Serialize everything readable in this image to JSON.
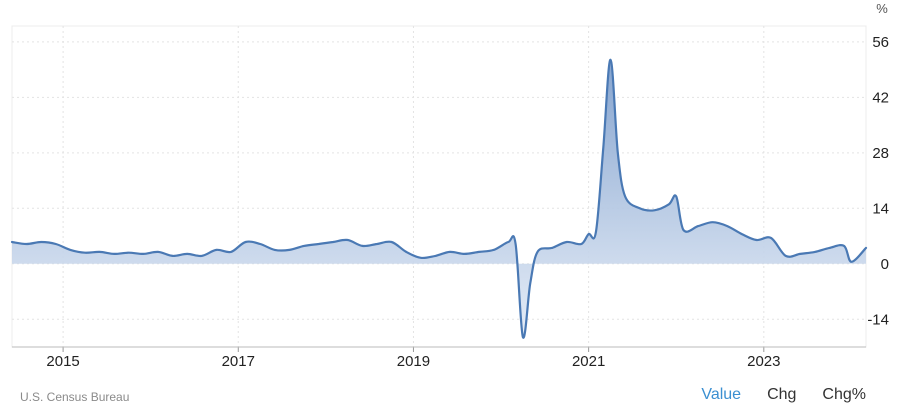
{
  "source": "U.S. Census Bureau",
  "tabs": [
    {
      "label": "Value",
      "active": true
    },
    {
      "label": "Chg",
      "active": false
    },
    {
      "label": "Chg%",
      "active": false
    }
  ],
  "colors": {
    "line": "#4a79b4",
    "fill_top": "#7f9fcc",
    "fill_bottom": "#e4ecf7",
    "grid": "#e3e3e3",
    "active_tab": "#3a8fd1"
  },
  "chart_data": {
    "type": "area",
    "title": "",
    "xlabel": "",
    "ylabel": "%",
    "unit": "%",
    "y_ticks": [
      56,
      42,
      28,
      14,
      0,
      -14
    ],
    "ylim": [
      -21,
      60
    ],
    "x_ticks": [
      "2015",
      "2017",
      "2019",
      "2021",
      "2023"
    ],
    "xlim": [
      "2014-06",
      "2024-03"
    ],
    "grid": true,
    "legend": "none",
    "y_axis_position": "right",
    "series": [
      {
        "x": [
          "2014-06",
          "2014-08",
          "2014-10",
          "2014-12",
          "2015-02",
          "2015-04",
          "2015-06",
          "2015-08",
          "2015-10",
          "2015-12",
          "2016-02",
          "2016-04",
          "2016-06",
          "2016-08",
          "2016-10",
          "2016-12",
          "2017-02",
          "2017-04",
          "2017-06",
          "2017-08",
          "2017-10",
          "2017-12",
          "2018-02",
          "2018-04",
          "2018-06",
          "2018-08",
          "2018-10",
          "2018-12",
          "2019-02",
          "2019-04",
          "2019-06",
          "2019-08",
          "2019-10",
          "2019-12",
          "2020-02",
          "2020-03",
          "2020-04",
          "2020-05",
          "2020-06",
          "2020-08",
          "2020-10",
          "2020-12",
          "2021-01",
          "2021-02",
          "2021-03",
          "2021-04",
          "2021-05",
          "2021-06",
          "2021-08",
          "2021-10",
          "2021-12",
          "2022-01",
          "2022-02",
          "2022-04",
          "2022-06",
          "2022-08",
          "2022-10",
          "2022-12",
          "2023-02",
          "2023-04",
          "2023-06",
          "2023-08",
          "2023-10",
          "2023-12",
          "2024-01",
          "2024-03"
        ],
        "values": [
          5.5,
          5.0,
          5.5,
          5.0,
          3.5,
          2.8,
          3.0,
          2.5,
          2.8,
          2.5,
          3.0,
          2.0,
          2.5,
          2.0,
          3.5,
          3.0,
          5.5,
          5.0,
          3.5,
          3.5,
          4.5,
          5.0,
          5.5,
          6.0,
          4.5,
          5.0,
          5.5,
          3.0,
          1.5,
          2.0,
          3.0,
          2.5,
          3.0,
          3.5,
          5.5,
          5.0,
          -18.5,
          -5.0,
          3.0,
          4.0,
          5.5,
          5.0,
          7.5,
          8.0,
          29.0,
          51.5,
          28.0,
          17.0,
          14.0,
          13.5,
          15.0,
          17.0,
          8.5,
          9.5,
          10.5,
          9.5,
          7.5,
          6.0,
          6.5,
          2.0,
          2.5,
          3.0,
          4.0,
          4.5,
          0.5,
          4.0
        ]
      }
    ]
  }
}
